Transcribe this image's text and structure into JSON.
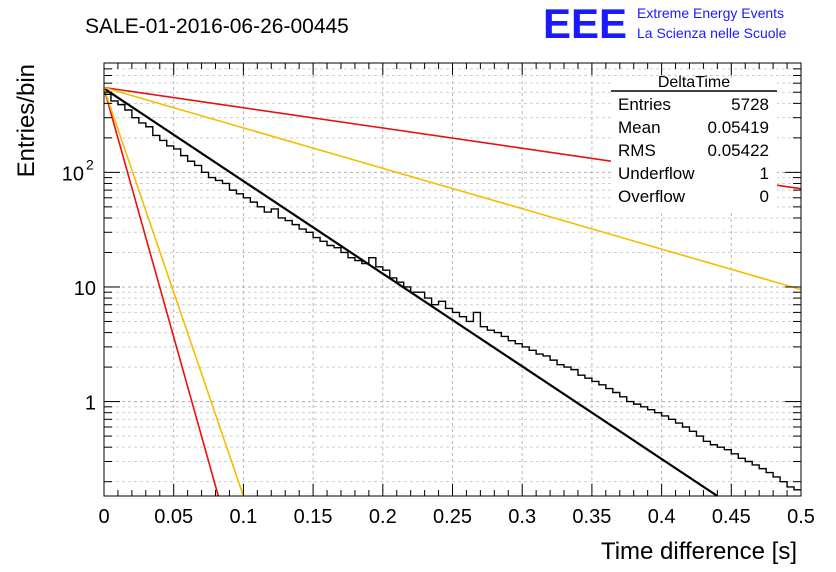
{
  "title": "SALE-01-2016-06-26-00445",
  "logo": {
    "letters": "EEE",
    "line1": "Extreme Energy Events",
    "line2": "La Scienza nelle Scuole",
    "color": "#1a1aff"
  },
  "stats": {
    "name": "DeltaTime",
    "rows": [
      {
        "label": "Entries",
        "value": "5728"
      },
      {
        "label": "Mean",
        "value": "0.05419"
      },
      {
        "label": "RMS",
        "value": "0.05422"
      },
      {
        "label": "Underflow",
        "value": "1"
      },
      {
        "label": "Overflow",
        "value": "0"
      }
    ]
  },
  "chart_data": {
    "type": "line",
    "xlabel": "Time difference [s]",
    "ylabel": "Entries/bin",
    "xlim": [
      0,
      0.5
    ],
    "ylim": [
      0.15,
      900
    ],
    "yscale": "log",
    "grid": true,
    "x_ticks": [
      "0",
      "0.05",
      "0.1",
      "0.15",
      "0.2",
      "0.25",
      "0.3",
      "0.35",
      "0.4",
      "0.45",
      "0.5"
    ],
    "y_ticks": [
      {
        "value": 1,
        "label": "1"
      },
      {
        "value": 10,
        "label": "10"
      },
      {
        "value": 100,
        "label": "10",
        "sup": "2"
      }
    ],
    "histogram": {
      "bin_width": 0.005,
      "x_start": 0,
      "color": "#000000",
      "values": [
        480,
        420,
        390,
        350,
        300,
        270,
        250,
        210,
        190,
        170,
        160,
        140,
        125,
        115,
        100,
        90,
        85,
        80,
        70,
        65,
        60,
        55,
        50,
        45,
        48,
        40,
        38,
        35,
        32,
        30,
        27,
        25,
        23,
        22,
        20,
        18,
        17,
        16,
        18,
        15,
        14,
        12,
        11,
        10,
        9,
        9,
        8,
        7,
        7.5,
        6.5,
        6,
        5.5,
        5,
        6,
        4.5,
        4.2,
        4,
        3.7,
        3.4,
        3.2,
        3.0,
        2.8,
        2.6,
        2.5,
        2.3,
        2.1,
        2.0,
        1.9,
        1.7,
        1.6,
        1.5,
        1.4,
        1.3,
        1.2,
        1.1,
        1.0,
        0.95,
        0.9,
        0.85,
        0.8,
        0.75,
        0.7,
        0.65,
        0.6,
        0.55,
        0.5,
        0.45,
        0.42,
        0.4,
        0.38,
        0.35,
        0.32,
        0.3,
        0.28,
        0.26,
        0.24,
        0.22,
        0.2,
        0.18,
        0.17
      ]
    },
    "series": [
      {
        "color": "#000000",
        "width": 2.2,
        "x0": 0,
        "y0": 540,
        "x1": 0.44,
        "y1": 0.15
      },
      {
        "color": "#e81010",
        "width": 1.6,
        "x0": 0,
        "y0": 550,
        "x1": 0.5,
        "y1": 72
      },
      {
        "color": "#f5bd00",
        "width": 1.6,
        "x0": 0,
        "y0": 550,
        "x1": 0.5,
        "y1": 9.5
      },
      {
        "color": "#e81010",
        "width": 1.6,
        "x0": 0,
        "y0": 540,
        "x1": 0.082,
        "y1": 0.15
      },
      {
        "color": "#f5bd00",
        "width": 1.6,
        "x0": 0,
        "y0": 540,
        "x1": 0.1,
        "y1": 0.15
      }
    ]
  }
}
